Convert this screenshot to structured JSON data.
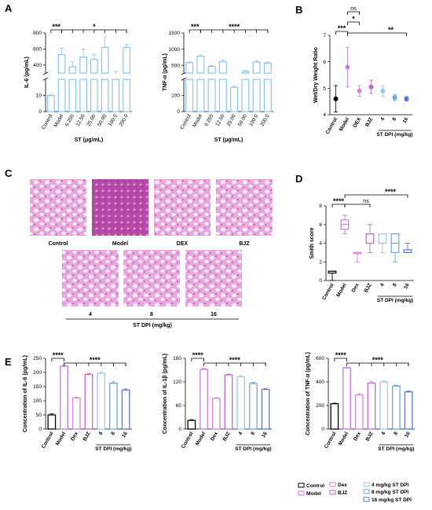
{
  "panels": {
    "a": "A",
    "b": "B",
    "c": "C",
    "d": "D",
    "e": "E"
  },
  "colors": {
    "control": "#000000",
    "model": "#c77cdb",
    "dex": "#d486cf",
    "bjz": "#c266c8",
    "st4": "#9ec6e6",
    "st8": "#6aa7dd",
    "st16": "#5a76d6",
    "stbar": "#8fc3ea",
    "histo_bg": "#f1c9e9",
    "histo_cell": "#b54ba6",
    "histo_air": "#fbeefa"
  },
  "histology": {
    "labels": [
      "Control",
      "Model",
      "DEX",
      "BJZ"
    ],
    "labels2": [
      "4",
      "8",
      "16"
    ],
    "xlabel": "ST DPI (mg/kg)"
  },
  "legend": {
    "items": [
      "Control",
      "Model",
      "Dex",
      "BJZ",
      "4 mg/kg ST DPI",
      "8 mg/kg ST DPI",
      "16 mg/kg ST DPI"
    ]
  },
  "chart_data": [
    {
      "id": "A1",
      "type": "bar",
      "ylabel": "IL-6 (pg/mL)",
      "xlabel": "ST (μg/mL)",
      "categories": [
        "Control",
        "Model",
        "6.250",
        "12.50",
        "25.00",
        "50.00",
        "100.0",
        "200.0"
      ],
      "values": [
        10,
        530,
        380,
        500,
        470,
        620,
        290,
        620
      ],
      "errors": [
        0.8,
        80,
        60,
        100,
        60,
        130,
        30,
        40
      ],
      "yticks_low": [
        "0",
        "10"
      ],
      "yticks_high": [
        "400",
        "600",
        "800"
      ],
      "ylim_low": [
        0,
        20
      ],
      "ylim_high": [
        300,
        800
      ],
      "annotations": [
        "***",
        "*"
      ]
    },
    {
      "id": "A2",
      "type": "bar",
      "ylabel": "TNF-α (pg/mL)",
      "xlabel": "ST (μg/mL)",
      "categories": [
        "Control",
        "Model",
        "6.250",
        "12.50",
        "25.00",
        "50.00",
        "100.0",
        "200.0"
      ],
      "values": [
        580,
        780,
        470,
        610,
        150,
        310,
        600,
        570
      ],
      "errors": [
        30,
        40,
        20,
        50,
        10,
        30,
        40,
        30
      ],
      "yticks_low": [
        "0",
        "100"
      ],
      "yticks_high": [
        "500",
        "1000",
        "1500"
      ],
      "ylim_low": [
        0,
        200
      ],
      "ylim_high": [
        260,
        1500
      ],
      "annotations": [
        "***",
        "****"
      ]
    },
    {
      "id": "B",
      "type": "scatter",
      "ylabel": "Wet/Dry Weight Ratio",
      "categories": [
        "Control",
        "Model",
        "DEX",
        "BJZ",
        "4",
        "8",
        "16"
      ],
      "group_label": "ST DPI (mg/kg)",
      "values": [
        4.6,
        5.8,
        4.9,
        5.05,
        4.9,
        4.65,
        4.6
      ],
      "errors": [
        0.5,
        0.75,
        0.2,
        0.25,
        0.2,
        0.12,
        0.08
      ],
      "yticks": [
        "4",
        "5",
        "6",
        "7"
      ],
      "ylim": [
        4,
        7
      ],
      "annotations": [
        "***",
        "ns",
        "*",
        "**"
      ]
    },
    {
      "id": "D",
      "type": "box",
      "ylabel": "Smith score",
      "categories": [
        "Control",
        "Model",
        "Dex",
        "BJZ",
        "4",
        "8",
        "16"
      ],
      "group_label": "ST DPI (mg/kg)",
      "medians": [
        1,
        6,
        3,
        5,
        4,
        4,
        3
      ],
      "q1": [
        0.8,
        5.5,
        3,
        4,
        4,
        3,
        3
      ],
      "q3": [
        1,
        6.5,
        3,
        5,
        5,
        5,
        3.3
      ],
      "min": [
        0,
        5,
        2,
        3,
        3,
        2,
        3
      ],
      "max": [
        1,
        7,
        3,
        6,
        5,
        5,
        4
      ],
      "yticks": [
        "0",
        "2",
        "4",
        "6",
        "8"
      ],
      "ylim": [
        0,
        8
      ],
      "annotations": [
        "****",
        "ns",
        "****"
      ]
    },
    {
      "id": "E1",
      "type": "bar",
      "ylabel": "Concentration of IL-6 (pg/mL)",
      "categories": [
        "Control",
        "Model",
        "Dex",
        "BJZ",
        "4",
        "8",
        "16"
      ],
      "group_label": "ST DPI (mg/kg)",
      "values": [
        50,
        222,
        110,
        193,
        197,
        162,
        138
      ],
      "errors": [
        4,
        3,
        3,
        4,
        6,
        5,
        4
      ],
      "yticks": [
        "0",
        "50",
        "100",
        "150",
        "200",
        "250"
      ],
      "ylim": [
        0,
        250
      ],
      "annotations": [
        "****",
        "****"
      ]
    },
    {
      "id": "E2",
      "type": "bar",
      "ylabel": "Concentration of IL-1β (pg/mL)",
      "categories": [
        "Control",
        "Model",
        "Dex",
        "BJZ",
        "4",
        "8",
        "16"
      ],
      "group_label": "ST DPI (mg/kg)",
      "values": [
        22,
        152,
        78,
        138,
        133,
        116,
        101
      ],
      "errors": [
        2,
        2,
        2,
        2,
        3,
        3,
        2
      ],
      "yticks": [
        "0",
        "60",
        "120",
        "180"
      ],
      "ylim": [
        0,
        180
      ],
      "annotations": [
        "****",
        "****"
      ]
    },
    {
      "id": "E3",
      "type": "bar",
      "ylabel": "Concentration of TNF-α (pg/mL)",
      "categories": [
        "Control",
        "Model",
        "Dex",
        "BJZ",
        "4",
        "8",
        "16"
      ],
      "group_label": "ST DPI (mg/kg)",
      "values": [
        215,
        520,
        290,
        390,
        400,
        365,
        315
      ],
      "errors": [
        5,
        5,
        10,
        12,
        10,
        8,
        8
      ],
      "yticks": [
        "0",
        "200",
        "400",
        "600"
      ],
      "ylim": [
        0,
        600
      ],
      "annotations": [
        "****",
        "****"
      ]
    }
  ]
}
